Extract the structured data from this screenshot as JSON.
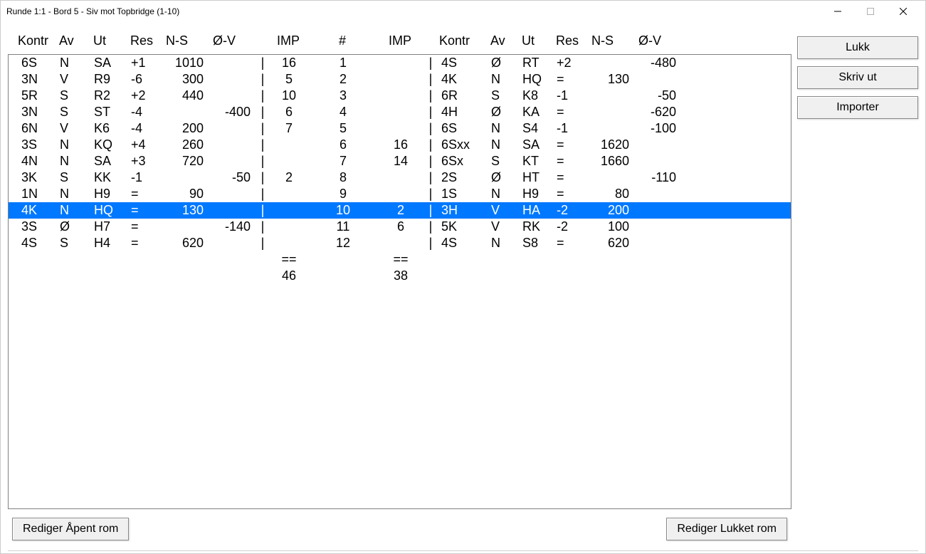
{
  "titlebar": {
    "title": "Runde 1:1 - Bord 5 - Siv mot Topbridge (1-10)"
  },
  "headers": {
    "kontr": "Kontr",
    "av": "Av",
    "ut": "Ut",
    "res": "Res",
    "ns": "N-S",
    "ov": "Ø-V",
    "imp": "IMP",
    "num": "#"
  },
  "rows": [
    {
      "k1": "6S",
      "a1": "N",
      "u1": "SA",
      "r1": "+1",
      "ns1": "1010",
      "ov1": "",
      "im1": "16",
      "n": "1",
      "im2": "",
      "k2": "4S",
      "a2": "Ø",
      "u2": "RT",
      "r2": "+2",
      "ns2": "",
      "ov2": "-480",
      "sel": false
    },
    {
      "k1": "3N",
      "a1": "V",
      "u1": "R9",
      "r1": "-6",
      "ns1": "300",
      "ov1": "",
      "im1": "5",
      "n": "2",
      "im2": "",
      "k2": "4K",
      "a2": "N",
      "u2": "HQ",
      "r2": "=",
      "ns2": "130",
      "ov2": "",
      "sel": false
    },
    {
      "k1": "5R",
      "a1": "S",
      "u1": "R2",
      "r1": "+2",
      "ns1": "440",
      "ov1": "",
      "im1": "10",
      "n": "3",
      "im2": "",
      "k2": "6R",
      "a2": "S",
      "u2": "K8",
      "r2": "-1",
      "ns2": "",
      "ov2": "-50",
      "sel": false
    },
    {
      "k1": "3N",
      "a1": "S",
      "u1": "ST",
      "r1": "-4",
      "ns1": "",
      "ov1": "-400",
      "im1": "6",
      "n": "4",
      "im2": "",
      "k2": "4H",
      "a2": "Ø",
      "u2": "KA",
      "r2": "=",
      "ns2": "",
      "ov2": "-620",
      "sel": false
    },
    {
      "k1": "6N",
      "a1": "V",
      "u1": "K6",
      "r1": "-4",
      "ns1": "200",
      "ov1": "",
      "im1": "7",
      "n": "5",
      "im2": "",
      "k2": "6S",
      "a2": "N",
      "u2": "S4",
      "r2": "-1",
      "ns2": "",
      "ov2": "-100",
      "sel": false
    },
    {
      "k1": "3S",
      "a1": "N",
      "u1": "KQ",
      "r1": "+4",
      "ns1": "260",
      "ov1": "",
      "im1": "",
      "n": "6",
      "im2": "16",
      "k2": "6Sxx",
      "a2": "N",
      "u2": "SA",
      "r2": "=",
      "ns2": "1620",
      "ov2": "",
      "sel": false
    },
    {
      "k1": "4N",
      "a1": "N",
      "u1": "SA",
      "r1": "+3",
      "ns1": "720",
      "ov1": "",
      "im1": "",
      "n": "7",
      "im2": "14",
      "k2": "6Sx",
      "a2": "S",
      "u2": "KT",
      "r2": "=",
      "ns2": "1660",
      "ov2": "",
      "sel": false
    },
    {
      "k1": "3K",
      "a1": "S",
      "u1": "KK",
      "r1": "-1",
      "ns1": "",
      "ov1": "-50",
      "im1": "2",
      "n": "8",
      "im2": "",
      "k2": "2S",
      "a2": "Ø",
      "u2": "HT",
      "r2": "=",
      "ns2": "",
      "ov2": "-110",
      "sel": false
    },
    {
      "k1": "1N",
      "a1": "N",
      "u1": "H9",
      "r1": "=",
      "ns1": "90",
      "ov1": "",
      "im1": "",
      "n": "9",
      "im2": "",
      "k2": "1S",
      "a2": "N",
      "u2": "H9",
      "r2": "=",
      "ns2": "80",
      "ov2": "",
      "sel": false
    },
    {
      "k1": "4K",
      "a1": "N",
      "u1": "HQ",
      "r1": "=",
      "ns1": "130",
      "ov1": "",
      "im1": "",
      "n": "10",
      "im2": "2",
      "k2": "3H",
      "a2": "V",
      "u2": "HA",
      "r2": "-2",
      "ns2": "200",
      "ov2": "",
      "sel": true
    },
    {
      "k1": "3S",
      "a1": "Ø",
      "u1": "H7",
      "r1": "=",
      "ns1": "",
      "ov1": "-140",
      "im1": "",
      "n": "11",
      "im2": "6",
      "k2": "5K",
      "a2": "V",
      "u2": "RK",
      "r2": "-2",
      "ns2": "100",
      "ov2": "",
      "sel": false
    },
    {
      "k1": "4S",
      "a1": "S",
      "u1": "H4",
      "r1": "=",
      "ns1": "620",
      "ov1": "",
      "im1": "",
      "n": "12",
      "im2": "",
      "k2": "4S",
      "a2": "N",
      "u2": "S8",
      "r2": "=",
      "ns2": "620",
      "ov2": "",
      "sel": false
    }
  ],
  "summary": {
    "marker": "==",
    "imp1_total": "46",
    "imp2_total": "38"
  },
  "separator": "|",
  "buttons": {
    "close": "Lukk",
    "print": "Skriv ut",
    "import": "Importer",
    "edit_open": "Rediger Åpent rom",
    "edit_closed": "Rediger Lukket rom"
  },
  "colors": {
    "selection_bg": "#0078ff",
    "selection_fg": "#ffffff",
    "border": "#808080",
    "button_bg": "#f0f0f0"
  }
}
